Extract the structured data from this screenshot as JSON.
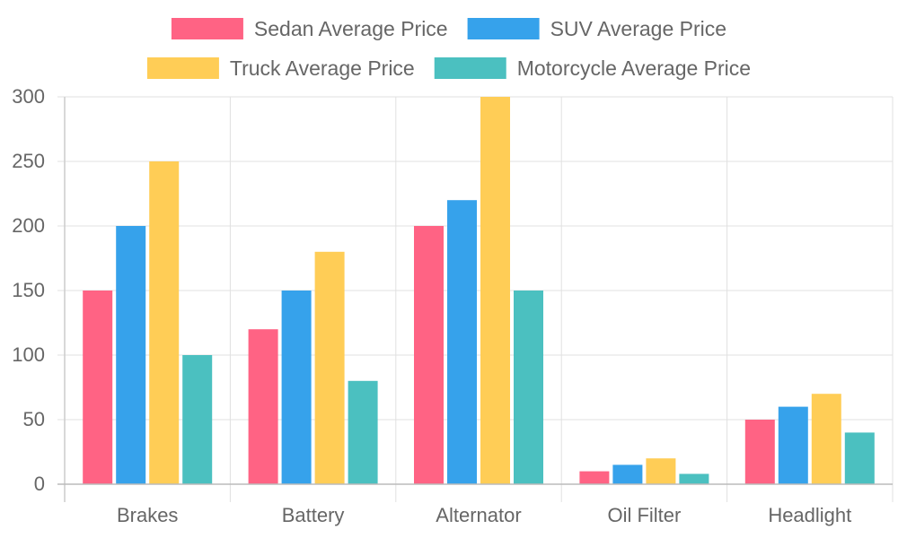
{
  "chart_data": {
    "type": "bar",
    "categories": [
      "Brakes",
      "Battery",
      "Alternator",
      "Oil Filter",
      "Headlight"
    ],
    "series": [
      {
        "name": "Sedan Average Price",
        "color": "#ff6384",
        "values": [
          150,
          120,
          200,
          10,
          50
        ]
      },
      {
        "name": "SUV Average Price",
        "color": "#36a2eb",
        "values": [
          200,
          150,
          220,
          15,
          60
        ]
      },
      {
        "name": "Truck Average Price",
        "color": "#ffcd56",
        "values": [
          250,
          180,
          300,
          20,
          70
        ]
      },
      {
        "name": "Motorcycle Average Price",
        "color": "#4bc0c0",
        "values": [
          100,
          80,
          150,
          8,
          40
        ]
      }
    ],
    "ylim": [
      0,
      300
    ],
    "yticks": [
      0,
      50,
      100,
      150,
      200,
      250,
      300
    ],
    "grid": true,
    "legend_position": "top",
    "title": "",
    "xlabel": "",
    "ylabel": ""
  }
}
